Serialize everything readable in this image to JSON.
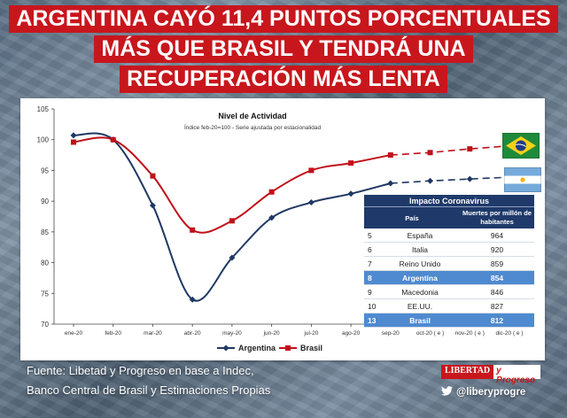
{
  "headline": {
    "line1": "ARGENTINA CAYÓ 11,4 PUNTOS PORCENTUALES",
    "line2": "MÁS QUE BRASIL Y TENDRÁ UNA",
    "line3": "RECUPERACIÓN MÁS LENTA"
  },
  "chart_data": {
    "type": "line",
    "title": "Nivel de Actividad",
    "subtitle": "Índice feb-20=100 - Serie ajustada por estacionalidad",
    "categories": [
      "ene-20",
      "feb-20",
      "mar-20",
      "abr-20",
      "may-20",
      "jun-20",
      "jul-20",
      "ago-20",
      "sep-20",
      "oct-20 ( e )",
      "nov-20 ( e )",
      "dic-20 ( e )"
    ],
    "ylim": [
      70,
      105
    ],
    "yticks": [
      70,
      75,
      80,
      85,
      90,
      95,
      100,
      105
    ],
    "actual_count": 9,
    "series": [
      {
        "name": "Argentina",
        "color": "#1f3864",
        "marker": "diamond",
        "values": [
          100.7,
          100,
          89.3,
          74.0,
          80.8,
          87.3,
          89.8,
          91.2,
          92.9,
          93.3,
          93.6,
          93.9
        ]
      },
      {
        "name": "Brasil",
        "color": "#c0101a",
        "marker": "square",
        "values": [
          99.6,
          100,
          94.1,
          85.3,
          86.8,
          91.5,
          95.0,
          96.2,
          97.5,
          97.9,
          98.5,
          99.0
        ]
      }
    ],
    "legend": [
      "Argentina",
      "Brasil"
    ]
  },
  "impact_table": {
    "title": "Impacto Coronavirus",
    "col_country": "País",
    "col_deaths": "Muertes por millón de habitantes",
    "rows": [
      {
        "rank": "5",
        "country": "España",
        "value": "964"
      },
      {
        "rank": "6",
        "country": "Italia",
        "value": "920"
      },
      {
        "rank": "7",
        "country": "Reino Unido",
        "value": "859"
      },
      {
        "rank": "8",
        "country": "Argentina",
        "value": "854"
      },
      {
        "rank": "9",
        "country": "Macedonia",
        "value": "846"
      },
      {
        "rank": "10",
        "country": "EE.UU.",
        "value": "827"
      },
      {
        "rank": "13",
        "country": "Brasil",
        "value": "812"
      }
    ]
  },
  "source": {
    "line1": "Fuente: Libetad y Progreso en base a Indec,",
    "line2": "Banco Central de Brasil y Estimaciones Propias"
  },
  "brand": {
    "logo_part1": "LIBERTAD",
    "logo_part2": "y Progreso",
    "twitter": "@liberyprogre"
  },
  "colors": {
    "accent": "#c8161d",
    "table_header": "#1f3a6a",
    "highlight": "#4f8ad0"
  }
}
